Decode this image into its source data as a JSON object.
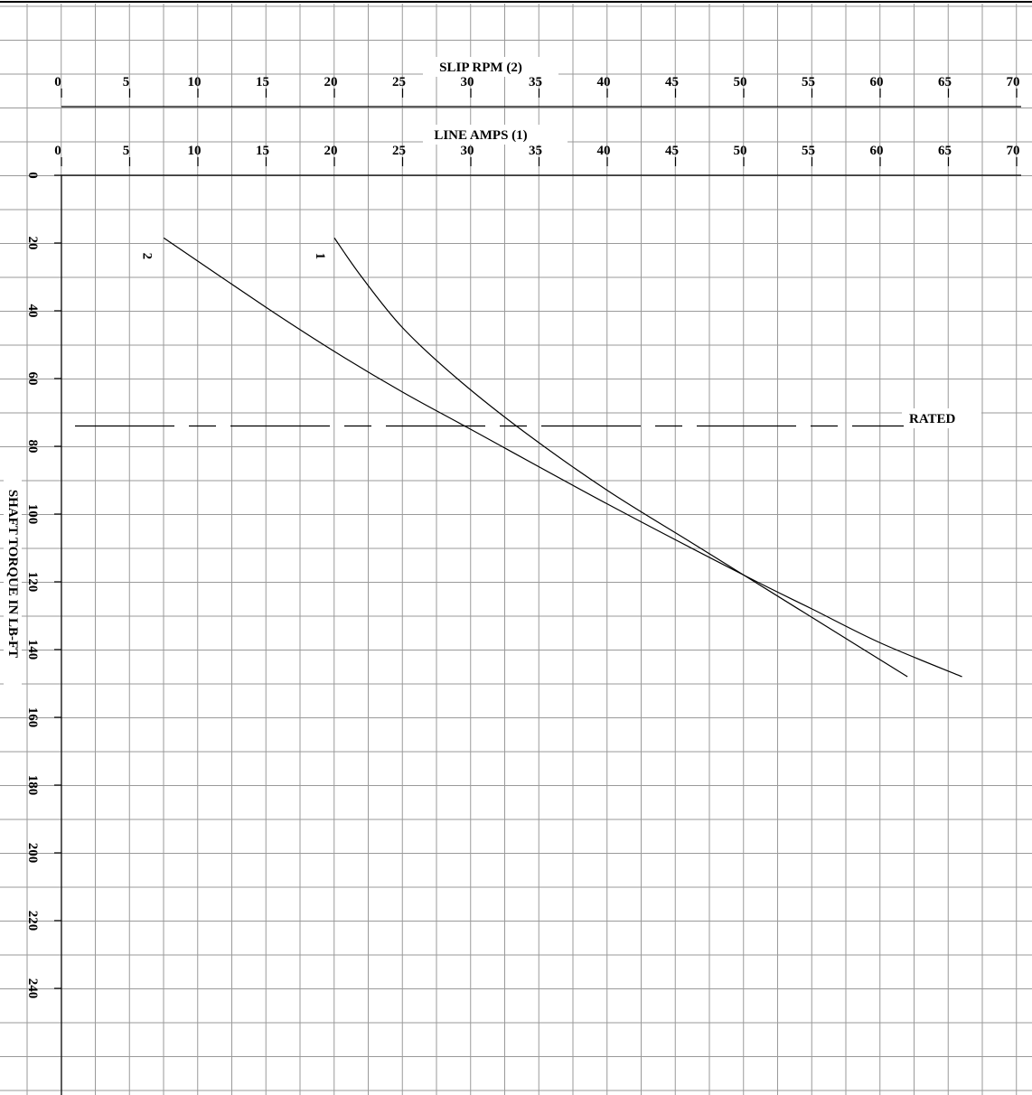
{
  "chart_data": {
    "type": "line",
    "top_axis_1": {
      "label": "SLIP RPM (2)",
      "ticks": [
        "0",
        "5",
        "10",
        "15",
        "20",
        "25",
        "30",
        "35",
        "40",
        "45",
        "50",
        "55",
        "60",
        "65",
        "70"
      ],
      "range": [
        0,
        70
      ]
    },
    "top_axis_2": {
      "label": "LINE AMPS (1)",
      "ticks": [
        "0",
        "5",
        "10",
        "15",
        "20",
        "25",
        "30",
        "35",
        "40",
        "45",
        "50",
        "55",
        "60",
        "65",
        "70"
      ],
      "range": [
        0,
        70
      ]
    },
    "y_axis": {
      "label": "SHAFT TORQUE IN LB-FT",
      "ticks": [
        "0",
        "20",
        "40",
        "60",
        "80",
        "100",
        "120",
        "140",
        "160",
        "180",
        "200",
        "220",
        "240"
      ],
      "range": [
        0,
        250
      ],
      "inverted": true
    },
    "grid": true,
    "rated_line": {
      "label": "RATED",
      "torque": 74
    },
    "series": [
      {
        "name": "1",
        "axis": "LINE AMPS (1)",
        "points": [
          [
            20,
            18.5
          ],
          [
            22,
            30
          ],
          [
            25,
            45
          ],
          [
            29,
            60
          ],
          [
            34,
            76
          ],
          [
            40,
            93
          ],
          [
            46,
            108
          ],
          [
            50,
            118
          ],
          [
            56,
            133
          ],
          [
            62,
            148
          ]
        ]
      },
      {
        "name": "2",
        "axis": "SLIP RPM (2)",
        "points": [
          [
            7.5,
            18.5
          ],
          [
            15,
            39
          ],
          [
            20,
            52
          ],
          [
            25,
            64
          ],
          [
            30,
            75
          ],
          [
            40,
            97
          ],
          [
            50,
            118
          ],
          [
            55,
            128
          ],
          [
            60,
            138
          ],
          [
            66,
            148
          ]
        ]
      }
    ]
  }
}
